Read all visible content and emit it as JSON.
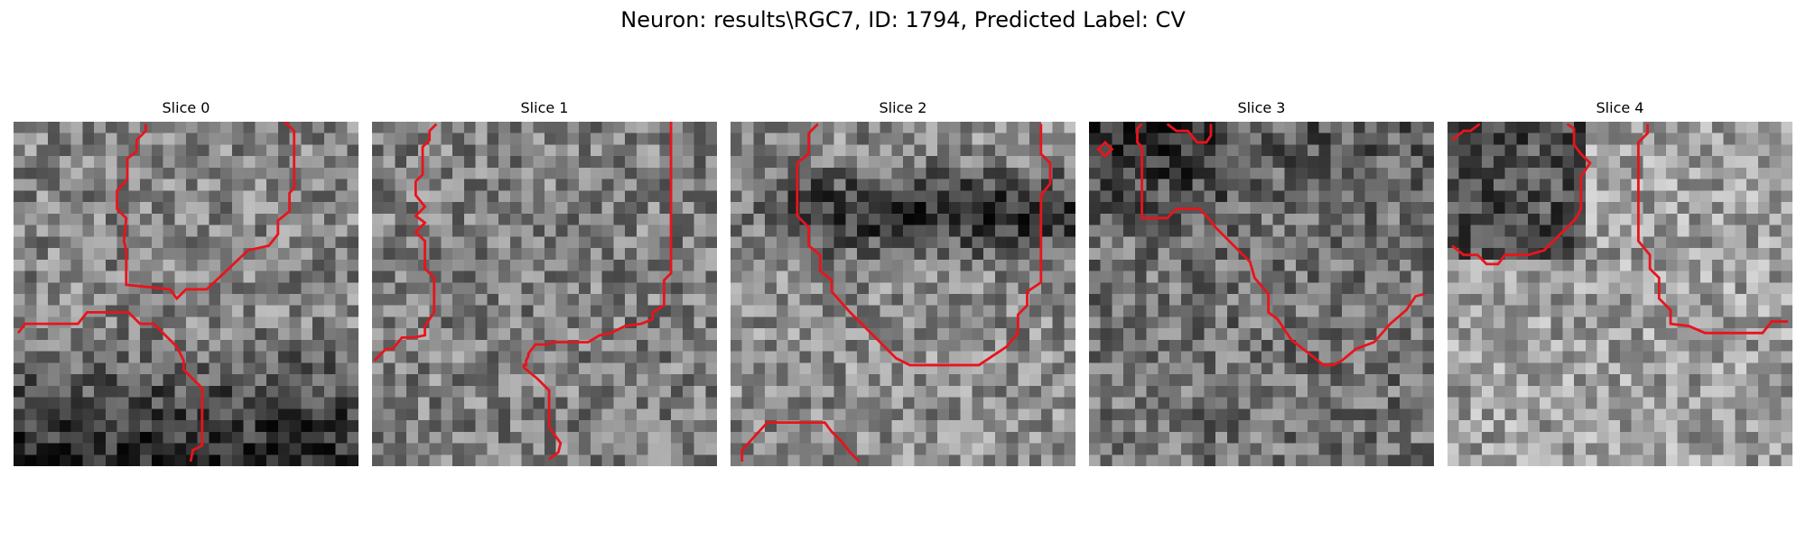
{
  "figure": {
    "title": "Neuron: results\\RGC7, ID: 1794, Predicted Label: CV"
  },
  "contour_color": "#e8141c",
  "panels": [
    {
      "title": "Slice 0",
      "image": "grayscale-noise-patch",
      "seed": 11,
      "base": 0.52,
      "bias": "dark-bottom"
    },
    {
      "title": "Slice 1",
      "image": "grayscale-noise-patch",
      "seed": 23,
      "base": 0.5,
      "bias": "none"
    },
    {
      "title": "Slice 2",
      "image": "grayscale-noise-patch",
      "seed": 37,
      "base": 0.55,
      "bias": "dark-top-band"
    },
    {
      "title": "Slice 3",
      "image": "grayscale-noise-patch",
      "seed": 41,
      "base": 0.45,
      "bias": "dark-top"
    },
    {
      "title": "Slice 4",
      "image": "grayscale-noise-patch",
      "seed": 53,
      "base": 0.62,
      "bias": "dark-top-left"
    }
  ]
}
